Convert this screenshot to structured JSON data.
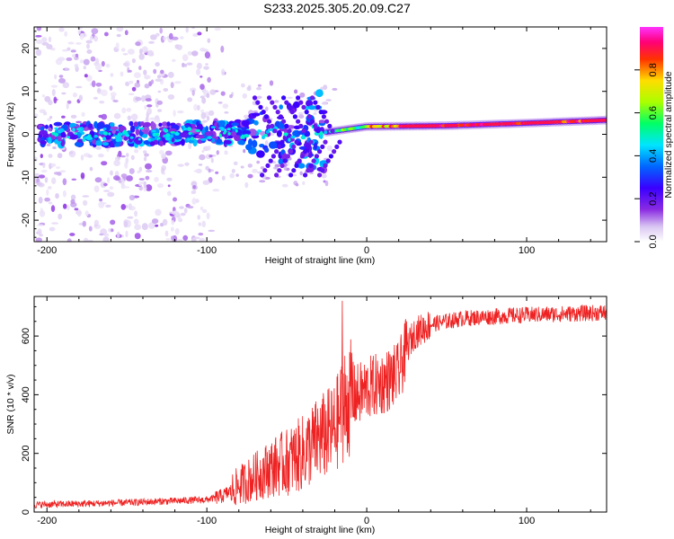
{
  "title": "S233.2025.305.20.09.C27",
  "chart_data": [
    {
      "type": "heatmap",
      "name": "spectrogram",
      "xlabel": "Height of straight line (km)",
      "ylabel": "Frequency (Hz)",
      "xlim": [
        -208,
        150
      ],
      "ylim": [
        -25,
        25
      ],
      "xticks": [
        -200,
        -100,
        0,
        100
      ],
      "xtick_labels": [
        "-200",
        "-100",
        "0",
        "100"
      ],
      "yticks": [
        -20,
        -10,
        0,
        10,
        20
      ],
      "ytick_labels": [
        "-20",
        "-10",
        "0",
        "10",
        "20"
      ],
      "colorbar": {
        "label": "Normalized spectral amplitude",
        "range": [
          0,
          1
        ],
        "ticks": [
          0.0,
          0.2,
          0.4,
          0.6,
          0.8
        ],
        "tick_labels": [
          "0.0",
          "0.2",
          "0.4",
          "0.6",
          "0.8"
        ],
        "colors": [
          "#ffffff",
          "#d9c6f2",
          "#8a2be2",
          "#3a00ff",
          "#0066ff",
          "#00e5ff",
          "#00ff66",
          "#aaff00",
          "#ffdd00",
          "#ff3300",
          "#ff0077",
          "#ff33ff"
        ]
      },
      "carrier_line": [
        {
          "x": -208,
          "y": 0.0
        },
        {
          "x": -150,
          "y": 0.0
        },
        {
          "x": -100,
          "y": 0.5
        },
        {
          "x": -60,
          "y": 0.0
        },
        {
          "x": -25,
          "y": 0.5
        },
        {
          "x": 0,
          "y": 1.8
        },
        {
          "x": 50,
          "y": 2.0
        },
        {
          "x": 100,
          "y": 2.6
        },
        {
          "x": 150,
          "y": 3.3
        }
      ]
    },
    {
      "type": "line",
      "name": "snr",
      "xlabel": "Height of straight line (km)",
      "ylabel": "SNR (10 * v/v)",
      "xlim": [
        -208,
        150
      ],
      "ylim": [
        0,
        735
      ],
      "xticks": [
        -200,
        -100,
        0,
        100
      ],
      "xtick_labels": [
        "-200",
        "-100",
        "0",
        "100"
      ],
      "yticks": [
        0,
        200,
        400,
        600
      ],
      "ytick_labels": [
        "0",
        "200",
        "400",
        "600"
      ],
      "color": "#ee2222",
      "series": [
        {
          "name": "SNR",
          "points": [
            {
              "x": -208,
              "y": 25
            },
            {
              "x": -180,
              "y": 28
            },
            {
              "x": -150,
              "y": 32
            },
            {
              "x": -120,
              "y": 38
            },
            {
              "x": -100,
              "y": 42
            },
            {
              "x": -90,
              "y": 55
            },
            {
              "x": -80,
              "y": 90
            },
            {
              "x": -70,
              "y": 120
            },
            {
              "x": -60,
              "y": 150
            },
            {
              "x": -50,
              "y": 170
            },
            {
              "x": -40,
              "y": 200
            },
            {
              "x": -30,
              "y": 250
            },
            {
              "x": -20,
              "y": 280
            },
            {
              "x": -15,
              "y": 360
            },
            {
              "x": -10,
              "y": 390
            },
            {
              "x": -5,
              "y": 400
            },
            {
              "x": 0,
              "y": 420
            },
            {
              "x": 10,
              "y": 440
            },
            {
              "x": 20,
              "y": 470
            },
            {
              "x": 25,
              "y": 560
            },
            {
              "x": 30,
              "y": 610
            },
            {
              "x": 40,
              "y": 640
            },
            {
              "x": 60,
              "y": 660
            },
            {
              "x": 90,
              "y": 670
            },
            {
              "x": 120,
              "y": 675
            },
            {
              "x": 150,
              "y": 680
            }
          ]
        }
      ]
    }
  ]
}
